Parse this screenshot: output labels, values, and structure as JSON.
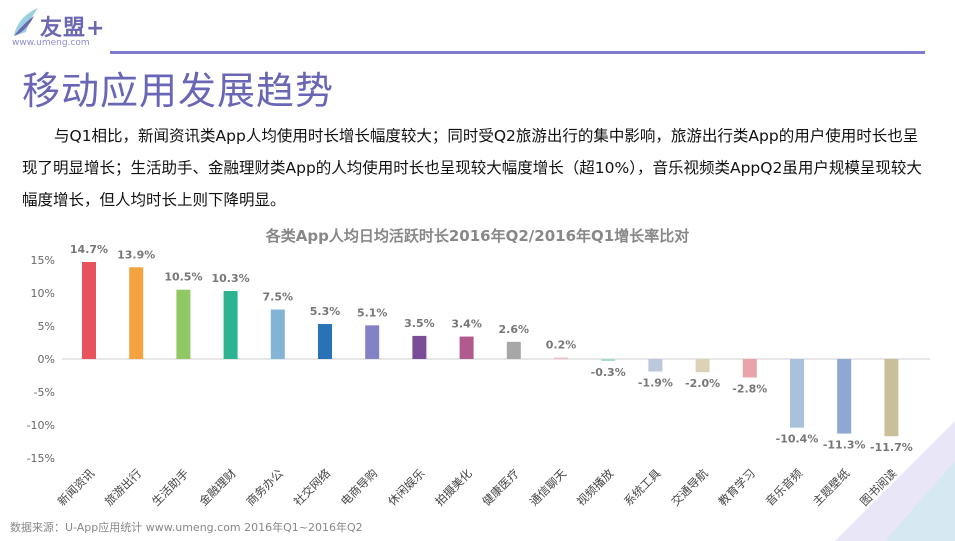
{
  "header": {
    "logo_text": "友盟+",
    "logo_url": "www.umeng.com",
    "page_title": "移动应用发展趋势"
  },
  "paragraph": "与Q1相比，新闻资讯类App人均使用时长增长幅度较大；同时受Q2旅游出行的集中影响，旅游出行类App的用户使用时长也呈现了明显增长；生活助手、金融理财类App的人均使用时长也呈现较大幅度增长（超10%），音乐视频类AppQ2虽用户规模呈现较大幅度增长，但人均时长上则下降明显。",
  "footer": {
    "source": "数据来源：U-App应用统计 www.umeng.com 2016年Q1~2016年Q2"
  },
  "chart_data": {
    "type": "bar",
    "title": "各类App人均日均活跃时长2016年Q2/2016年Q1增长率比对",
    "categories": [
      "新闻资讯",
      "旅游出行",
      "生活助手",
      "金融理财",
      "商务办公",
      "社交网络",
      "电商导购",
      "休闲娱乐",
      "拍摄美化",
      "健康医疗",
      "通信聊天",
      "视频播放",
      "系统工具",
      "交通导航",
      "教育学习",
      "音乐音频",
      "主题壁纸",
      "图书阅读"
    ],
    "values": [
      14.7,
      13.9,
      10.5,
      10.3,
      7.5,
      5.3,
      5.1,
      3.5,
      3.4,
      2.6,
      0.2,
      -0.3,
      -1.9,
      -2.0,
      -2.8,
      -10.4,
      -11.3,
      -11.7
    ],
    "value_labels": [
      "14.7%",
      "13.9%",
      "10.5%",
      "10.3%",
      "7.5%",
      "5.3%",
      "5.1%",
      "3.5%",
      "3.4%",
      "2.6%",
      "0.2%",
      "-0.3%",
      "-1.9%",
      "-2.0%",
      "-2.8%",
      "-10.4%",
      "-11.3%",
      "-11.7%"
    ],
    "colors": [
      "#e8525a",
      "#f4a340",
      "#8fc865",
      "#2db392",
      "#82b4d6",
      "#2a72b8",
      "#8282c4",
      "#7a4e96",
      "#b05a8e",
      "#a7a7a7",
      "#f0b9c0",
      "#a7dbd0",
      "#bcc9dd",
      "#dcd2b5",
      "#e9a4a9",
      "#a8c2de",
      "#8fa7d3",
      "#c9c09a"
    ],
    "yticks": [
      15,
      10,
      5,
      0,
      -5,
      -10,
      -15
    ],
    "ytick_labels": [
      "15%",
      "10%",
      "5%",
      "0%",
      "-5%",
      "-10%",
      "-15%"
    ],
    "ylim": [
      -15,
      15
    ],
    "grid": false,
    "legend": "none"
  }
}
